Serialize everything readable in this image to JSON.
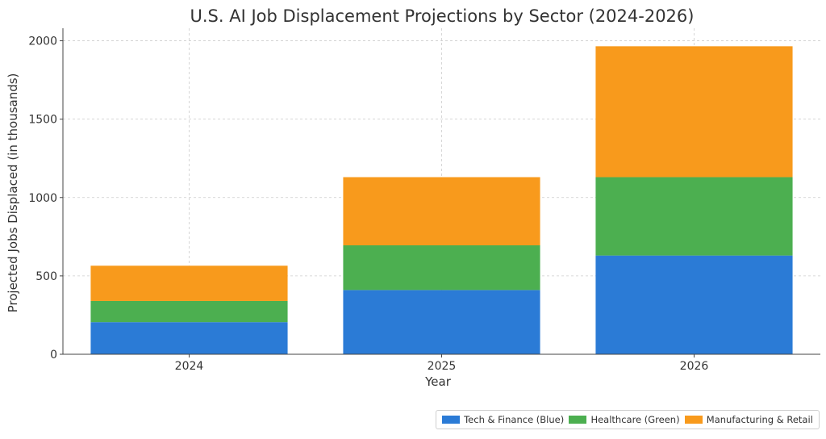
{
  "chart_data": {
    "type": "bar",
    "stacked": true,
    "title": "U.S. AI Job Displacement Projections by Sector (2024-2026)",
    "xlabel": "Year",
    "ylabel": "Projected Jobs Displaced (in thousands)",
    "categories": [
      "2024",
      "2025",
      "2026"
    ],
    "series": [
      {
        "name": "Tech & Finance (Blue)",
        "color": "#2b7bd6",
        "values": [
          205,
          410,
          630
        ]
      },
      {
        "name": "Healthcare (Green)",
        "color": "#4caf50",
        "values": [
          135,
          285,
          500
        ]
      },
      {
        "name": "Manufacturing & Retail",
        "color": "#f89a1c",
        "values": [
          225,
          435,
          835
        ]
      }
    ],
    "ylim": [
      0,
      2080
    ],
    "yticks": [
      0,
      500,
      1000,
      1500,
      2000
    ],
    "grid": true,
    "legend_position": "bottom-right"
  }
}
